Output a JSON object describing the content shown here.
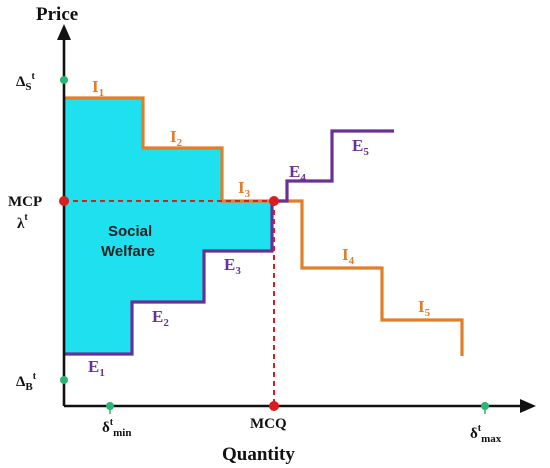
{
  "axes": {
    "y_title": "Price",
    "x_title": "Quantity"
  },
  "y_ticks": {
    "delta_s": {
      "base": "Δ",
      "sub": "S",
      "sup": "t"
    },
    "mcp": "MCP",
    "lambda": {
      "base": "λ",
      "sup": "t"
    },
    "delta_b": {
      "base": "Δ",
      "sub": "B",
      "sup": "t"
    }
  },
  "x_ticks": {
    "delta_min": {
      "base": "δ",
      "sup": "t",
      "sub": "min"
    },
    "mcq": "MCQ",
    "delta_max": {
      "base": "δ",
      "sup": "t",
      "sub": "max"
    }
  },
  "region": {
    "line1": "Social",
    "line2": "Welfare"
  },
  "offer_labels": [
    {
      "base": "I",
      "sub": "1"
    },
    {
      "base": "I",
      "sub": "2"
    },
    {
      "base": "I",
      "sub": "3"
    },
    {
      "base": "I",
      "sub": "4"
    },
    {
      "base": "I",
      "sub": "5"
    }
  ],
  "bid_labels": [
    {
      "base": "E",
      "sub": "1"
    },
    {
      "base": "E",
      "sub": "2"
    },
    {
      "base": "E",
      "sub": "3"
    },
    {
      "base": "E",
      "sub": "4"
    },
    {
      "base": "E",
      "sub": "5"
    }
  ],
  "colors": {
    "offer_curve": "#E07E2A",
    "bid_curve": "#6A3096",
    "welfare_fill": "#1FE0EE",
    "clearing": "#D81E1E",
    "tick_marker": "#2BB673",
    "axis": "#111111"
  }
}
